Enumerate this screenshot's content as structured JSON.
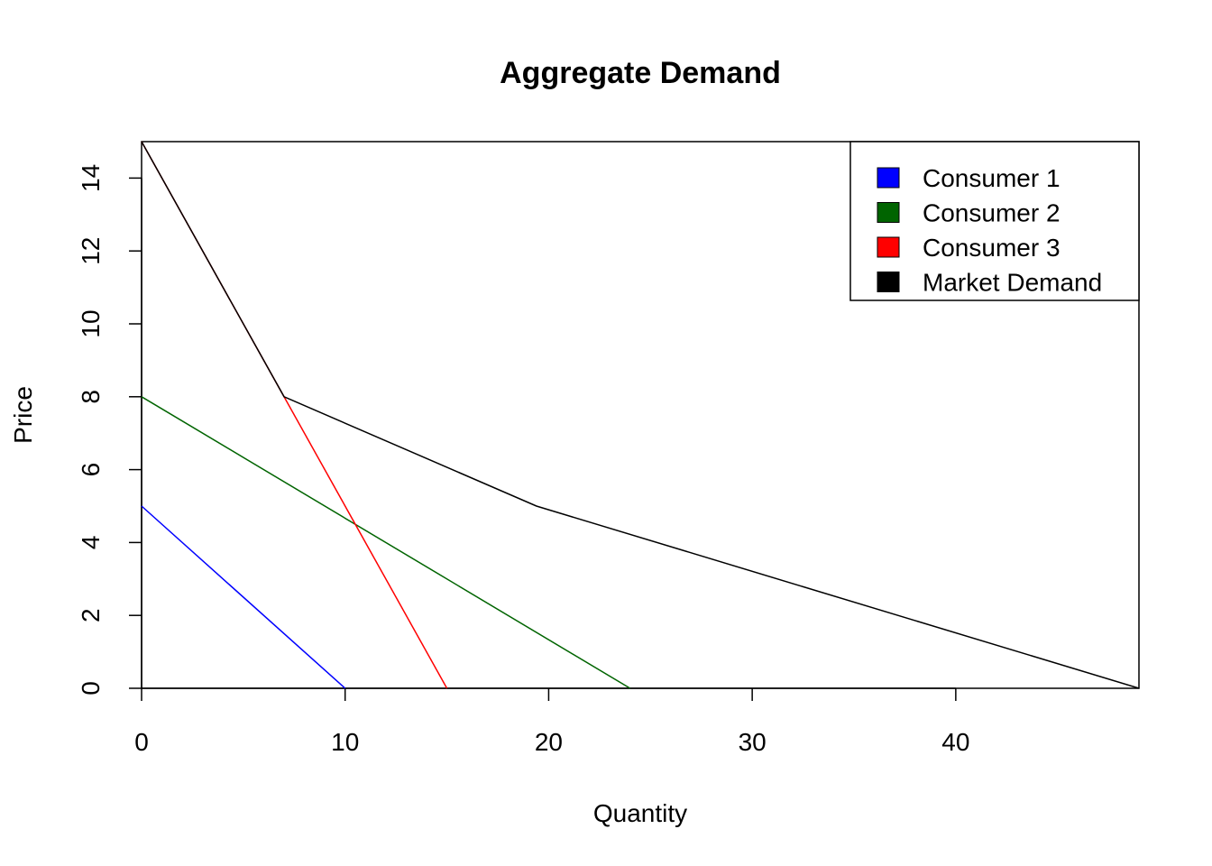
{
  "chart_data": {
    "type": "line",
    "title": "Aggregate Demand",
    "xlabel": "Quantity",
    "ylabel": "Price",
    "xlim": [
      0,
      49
    ],
    "ylim": [
      0,
      15
    ],
    "x_ticks": [
      "0",
      "10",
      "20",
      "30",
      "40"
    ],
    "y_ticks": [
      "0",
      "2",
      "4",
      "6",
      "8",
      "10",
      "12",
      "14"
    ],
    "grid": false,
    "legend_position": "top-right",
    "series": [
      {
        "name": "Consumer 1",
        "color": "#0000ff",
        "points": [
          [
            0,
            5
          ],
          [
            10,
            0
          ]
        ]
      },
      {
        "name": "Consumer 2",
        "color": "#006400",
        "points": [
          [
            0,
            8
          ],
          [
            24,
            0
          ]
        ]
      },
      {
        "name": "Consumer 3",
        "color": "#ff0000",
        "points": [
          [
            0,
            15
          ],
          [
            15,
            0
          ]
        ]
      },
      {
        "name": "Market Demand",
        "color": "#000000",
        "points": [
          [
            0,
            15
          ],
          [
            7,
            8
          ],
          [
            19.4,
            5
          ],
          [
            49,
            0
          ]
        ]
      }
    ]
  }
}
